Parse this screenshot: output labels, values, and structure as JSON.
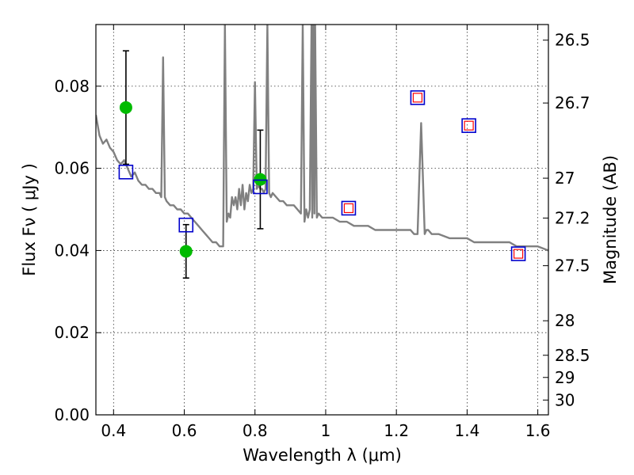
{
  "chart_data": {
    "type": "scatter",
    "xlabel": "Wavelength  λ (μm)",
    "ylabel": "Flux  Fν  ( μJy )",
    "y2label": "Magnitude (AB)",
    "xlim": [
      0.35,
      1.63
    ],
    "ylim": [
      0.0,
      0.095
    ],
    "x_ticks": [
      0.4,
      0.6,
      0.8,
      1.0,
      1.2,
      1.4,
      1.6
    ],
    "x_tick_labels": [
      "0.4",
      "0.6",
      "0.8",
      "1",
      "1.2",
      "1.4",
      "1.6"
    ],
    "y_ticks": [
      0.0,
      0.02,
      0.04,
      0.06,
      0.08
    ],
    "y_tick_labels": [
      "0.00",
      "0.02",
      "0.04",
      "0.06",
      "0.08"
    ],
    "mag_ticks": [
      {
        "label": "26.5",
        "flux": 0.0912
      },
      {
        "label": "26.7",
        "flux": 0.0759
      },
      {
        "label": "27",
        "flux": 0.0576
      },
      {
        "label": "27.2",
        "flux": 0.0479
      },
      {
        "label": "27.5",
        "flux": 0.0363
      },
      {
        "label": "28",
        "flux": 0.0229
      },
      {
        "label": "28.5",
        "flux": 0.0145
      },
      {
        "label": "29",
        "flux": 0.0091
      },
      {
        "label": "30",
        "flux": 0.0036
      }
    ],
    "grid": true,
    "colors": {
      "sed": "#808080",
      "observed": "#00bb00",
      "model_box": "#0000cc",
      "synthetic_box": "#ff0000",
      "errorbar": "#000000"
    },
    "series": [
      {
        "name": "model_sed",
        "kind": "line",
        "x": [
          0.35,
          0.36,
          0.37,
          0.38,
          0.39,
          0.4,
          0.41,
          0.42,
          0.43,
          0.44,
          0.45,
          0.46,
          0.47,
          0.48,
          0.49,
          0.5,
          0.51,
          0.52,
          0.53,
          0.535,
          0.54,
          0.545,
          0.55,
          0.56,
          0.57,
          0.58,
          0.59,
          0.6,
          0.61,
          0.62,
          0.63,
          0.64,
          0.65,
          0.66,
          0.67,
          0.68,
          0.69,
          0.7,
          0.705,
          0.71,
          0.715,
          0.72,
          0.725,
          0.73,
          0.735,
          0.74,
          0.745,
          0.75,
          0.755,
          0.76,
          0.765,
          0.77,
          0.775,
          0.78,
          0.785,
          0.79,
          0.795,
          0.8,
          0.805,
          0.81,
          0.815,
          0.82,
          0.825,
          0.83,
          0.835,
          0.84,
          0.845,
          0.85,
          0.86,
          0.87,
          0.88,
          0.89,
          0.9,
          0.91,
          0.92,
          0.93,
          0.935,
          0.94,
          0.945,
          0.95,
          0.955,
          0.96,
          0.962,
          0.965,
          0.968,
          0.97,
          0.975,
          0.98,
          0.99,
          1.0,
          1.02,
          1.04,
          1.06,
          1.08,
          1.1,
          1.12,
          1.14,
          1.16,
          1.18,
          1.2,
          1.22,
          1.24,
          1.25,
          1.26,
          1.265,
          1.27,
          1.275,
          1.28,
          1.285,
          1.29,
          1.3,
          1.32,
          1.35,
          1.38,
          1.4,
          1.42,
          1.44,
          1.46,
          1.48,
          1.5,
          1.52,
          1.54,
          1.56,
          1.58,
          1.6,
          1.63
        ],
        "y": [
          0.073,
          0.068,
          0.066,
          0.067,
          0.065,
          0.064,
          0.062,
          0.061,
          0.062,
          0.06,
          0.058,
          0.059,
          0.057,
          0.056,
          0.056,
          0.055,
          0.055,
          0.054,
          0.054,
          0.053,
          0.087,
          0.053,
          0.052,
          0.051,
          0.051,
          0.05,
          0.05,
          0.049,
          0.049,
          0.048,
          0.047,
          0.046,
          0.045,
          0.044,
          0.043,
          0.042,
          0.042,
          0.041,
          0.041,
          0.041,
          0.095,
          0.047,
          0.049,
          0.048,
          0.053,
          0.051,
          0.053,
          0.05,
          0.055,
          0.051,
          0.056,
          0.05,
          0.054,
          0.052,
          0.056,
          0.054,
          0.055,
          0.081,
          0.055,
          0.056,
          0.055,
          0.055,
          0.054,
          0.055,
          0.095,
          0.054,
          0.053,
          0.054,
          0.053,
          0.052,
          0.052,
          0.051,
          0.051,
          0.051,
          0.05,
          0.049,
          0.095,
          0.047,
          0.05,
          0.048,
          0.05,
          0.095,
          0.048,
          0.095,
          0.049,
          0.095,
          0.048,
          0.049,
          0.048,
          0.048,
          0.048,
          0.047,
          0.047,
          0.046,
          0.046,
          0.046,
          0.045,
          0.045,
          0.045,
          0.045,
          0.045,
          0.045,
          0.044,
          0.044,
          0.058,
          0.071,
          0.058,
          0.044,
          0.045,
          0.045,
          0.044,
          0.044,
          0.043,
          0.043,
          0.043,
          0.042,
          0.042,
          0.042,
          0.042,
          0.042,
          0.042,
          0.041,
          0.041,
          0.041,
          0.041,
          0.04
        ]
      },
      {
        "name": "observed_flux",
        "kind": "errorbar_points",
        "x": [
          0.435,
          0.605,
          0.815
        ],
        "y": [
          0.0748,
          0.0398,
          0.0573
        ],
        "yerr": [
          0.0138,
          0.0065,
          0.012
        ]
      },
      {
        "name": "model_photometry",
        "kind": "squares",
        "x": [
          0.435,
          0.605,
          0.815,
          1.065,
          1.26,
          1.405,
          1.545
        ],
        "y": [
          0.0591,
          0.0462,
          0.0555,
          0.0503,
          0.0772,
          0.0704,
          0.0392
        ]
      },
      {
        "name": "synthetic_photometry",
        "kind": "small_squares",
        "x": [
          1.065,
          1.26,
          1.405,
          1.545
        ],
        "y": [
          0.0503,
          0.0772,
          0.0704,
          0.0392
        ]
      }
    ]
  }
}
